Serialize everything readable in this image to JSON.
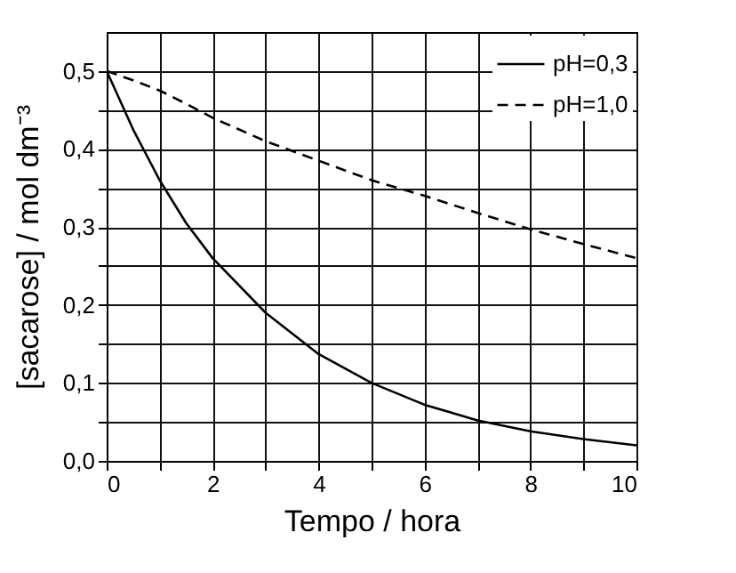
{
  "chart_data": {
    "type": "line",
    "xlabel": "Tempo / hora",
    "ylabel": "[sacarose] / mol dm⁻³",
    "x": [
      0,
      0.5,
      1,
      1.5,
      2,
      3,
      4,
      5,
      6,
      7,
      8,
      9,
      10
    ],
    "series": [
      {
        "name": "pH=0,3",
        "color": "#000000",
        "line_style": "solid",
        "values": [
          0.5,
          0.425,
          0.36,
          0.305,
          0.26,
          0.19,
          0.137,
          0.1,
          0.072,
          0.052,
          0.038,
          0.028,
          0.02
        ]
      },
      {
        "name": "pH=1,0",
        "color": "#000000",
        "line_style": "dashed",
        "values": [
          0.5,
          0.488,
          0.475,
          0.458,
          0.44,
          0.41,
          0.385,
          0.36,
          0.34,
          0.318,
          0.297,
          0.278,
          0.26
        ]
      }
    ],
    "xlim": [
      0,
      10
    ],
    "ylim": [
      0,
      0.55
    ],
    "xticks": [
      0,
      {
        "value": 1,
        "label": null
      },
      2,
      {
        "value": 3,
        "label": null
      },
      4,
      {
        "value": 5,
        "label": null
      },
      6,
      {
        "value": 7,
        "label": null
      },
      8,
      {
        "value": 9,
        "label": null
      },
      10
    ],
    "yticks": [
      {
        "value": 0,
        "label": "0,0"
      },
      {
        "value": 0.05,
        "label": null
      },
      {
        "value": 0.1,
        "label": "0,1"
      },
      {
        "value": 0.15,
        "label": null
      },
      {
        "value": 0.2,
        "label": "0,2"
      },
      {
        "value": 0.25,
        "label": null
      },
      {
        "value": 0.3,
        "label": "0,3"
      },
      {
        "value": 0.35,
        "label": null
      },
      {
        "value": 0.4,
        "label": "0,4"
      },
      {
        "value": 0.45,
        "label": null
      },
      {
        "value": 0.5,
        "label": "0,5"
      }
    ],
    "grid": true,
    "legend": "top right",
    "marker": "none"
  }
}
